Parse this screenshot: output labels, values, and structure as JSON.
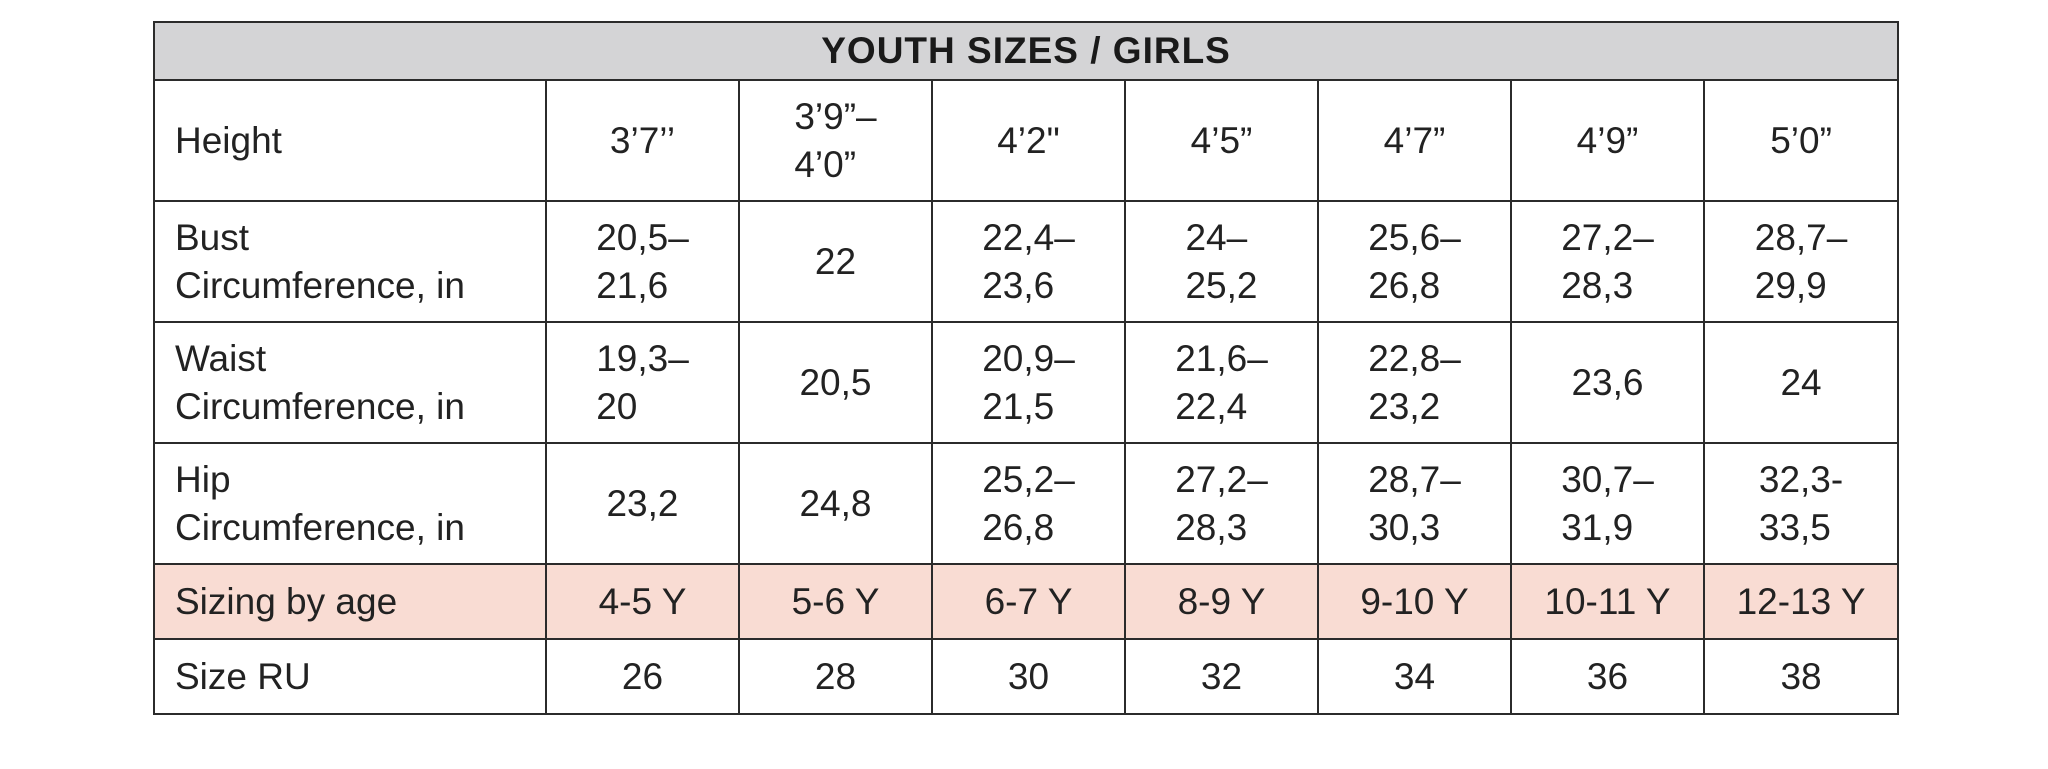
{
  "title": "YOUTH SIZES / GIRLS",
  "rows": [
    {
      "label": "Height",
      "values": [
        "3’7’’",
        "3’9”–\n4’0”",
        "4’2\"",
        "4’5”",
        "4’7”",
        "4’9”",
        "5’0”"
      ]
    },
    {
      "label": "Bust\nCircumference, in",
      "values": [
        "20,5–\n21,6",
        "22",
        "22,4–\n23,6",
        "24–\n25,2",
        "25,6–\n26,8",
        "27,2–\n28,3",
        "28,7–\n29,9"
      ]
    },
    {
      "label": "Waist\nCircumference, in",
      "values": [
        "19,3–\n20",
        "20,5",
        "20,9–\n21,5",
        "21,6–\n22,4",
        "22,8–\n23,2",
        "23,6",
        "24"
      ]
    },
    {
      "label": "Hip\nCircumference, in",
      "values": [
        "23,2",
        "24,8",
        "25,2–\n26,8",
        "27,2–\n28,3",
        "28,7–\n30,3",
        "30,7–\n31,9",
        "32,3-\n33,5"
      ]
    },
    {
      "label": "Sizing by age",
      "values": [
        "4-5 Y",
        "5-6 Y",
        "6-7 Y",
        "8-9 Y",
        "9-10 Y",
        "10-11 Y",
        "12-13 Y"
      ]
    },
    {
      "label": "Size RU",
      "values": [
        "26",
        "28",
        "30",
        "32",
        "34",
        "36",
        "38"
      ]
    }
  ],
  "colors": {
    "header_background": "#d4d4d6",
    "age_row_background": "#f9dcd3",
    "border": "#2b2b2b"
  }
}
